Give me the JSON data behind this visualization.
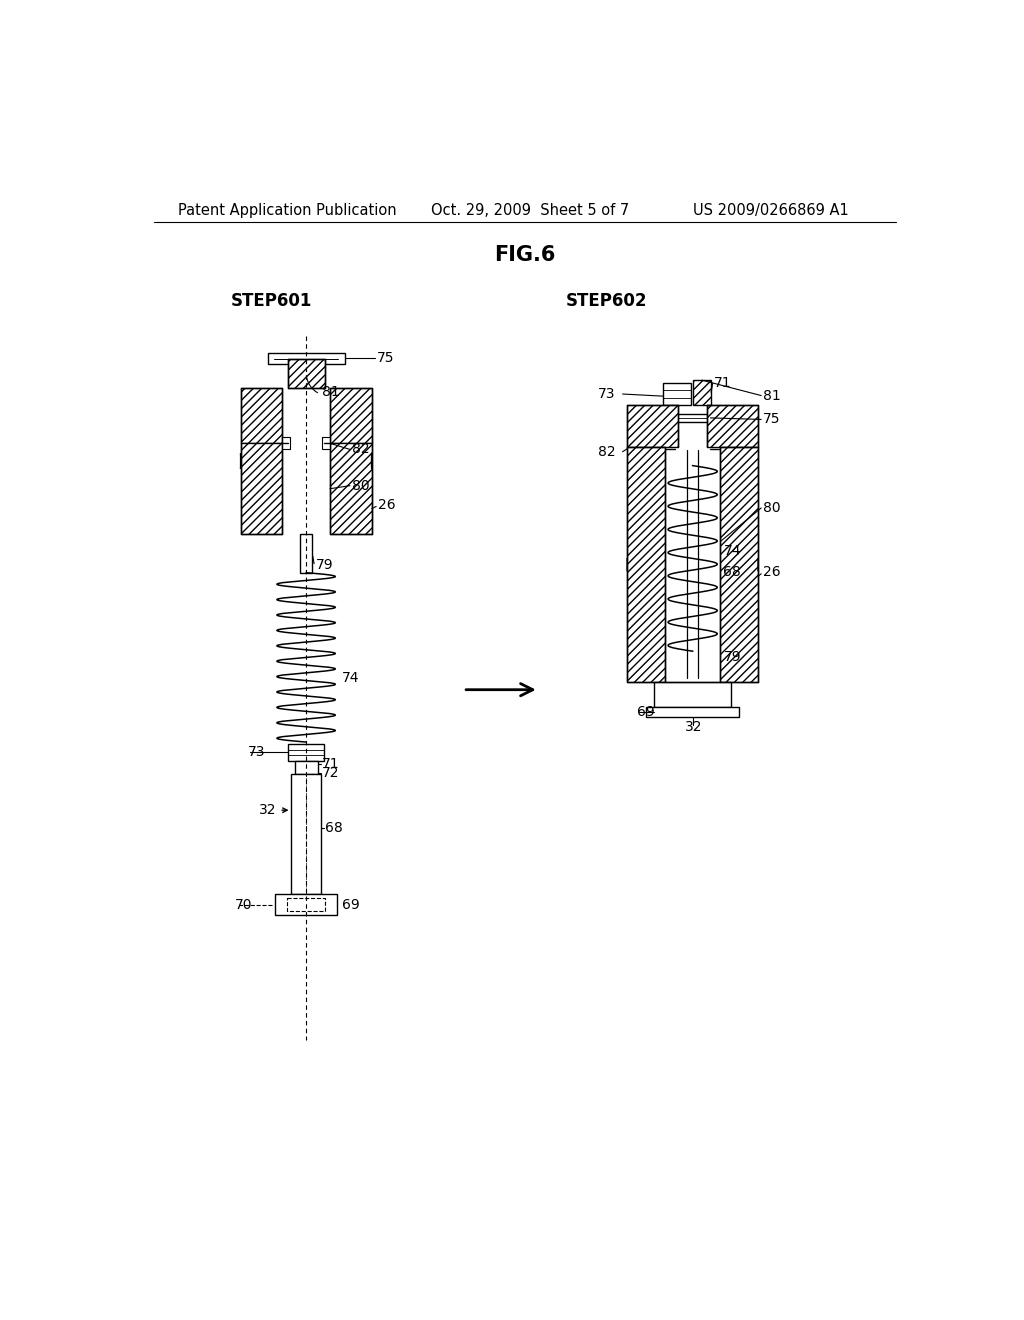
{
  "title": "FIG.6",
  "header_left": "Patent Application Publication",
  "header_center": "Oct. 29, 2009  Sheet 5 of 7",
  "header_right": "US 2009/0266869 A1",
  "step1_label": "STEP601",
  "step2_label": "STEP602",
  "bg_color": "#ffffff",
  "line_color": "#000000",
  "font_size_header": 10.5,
  "font_size_title": 15,
  "font_size_step": 12,
  "font_size_label": 10
}
